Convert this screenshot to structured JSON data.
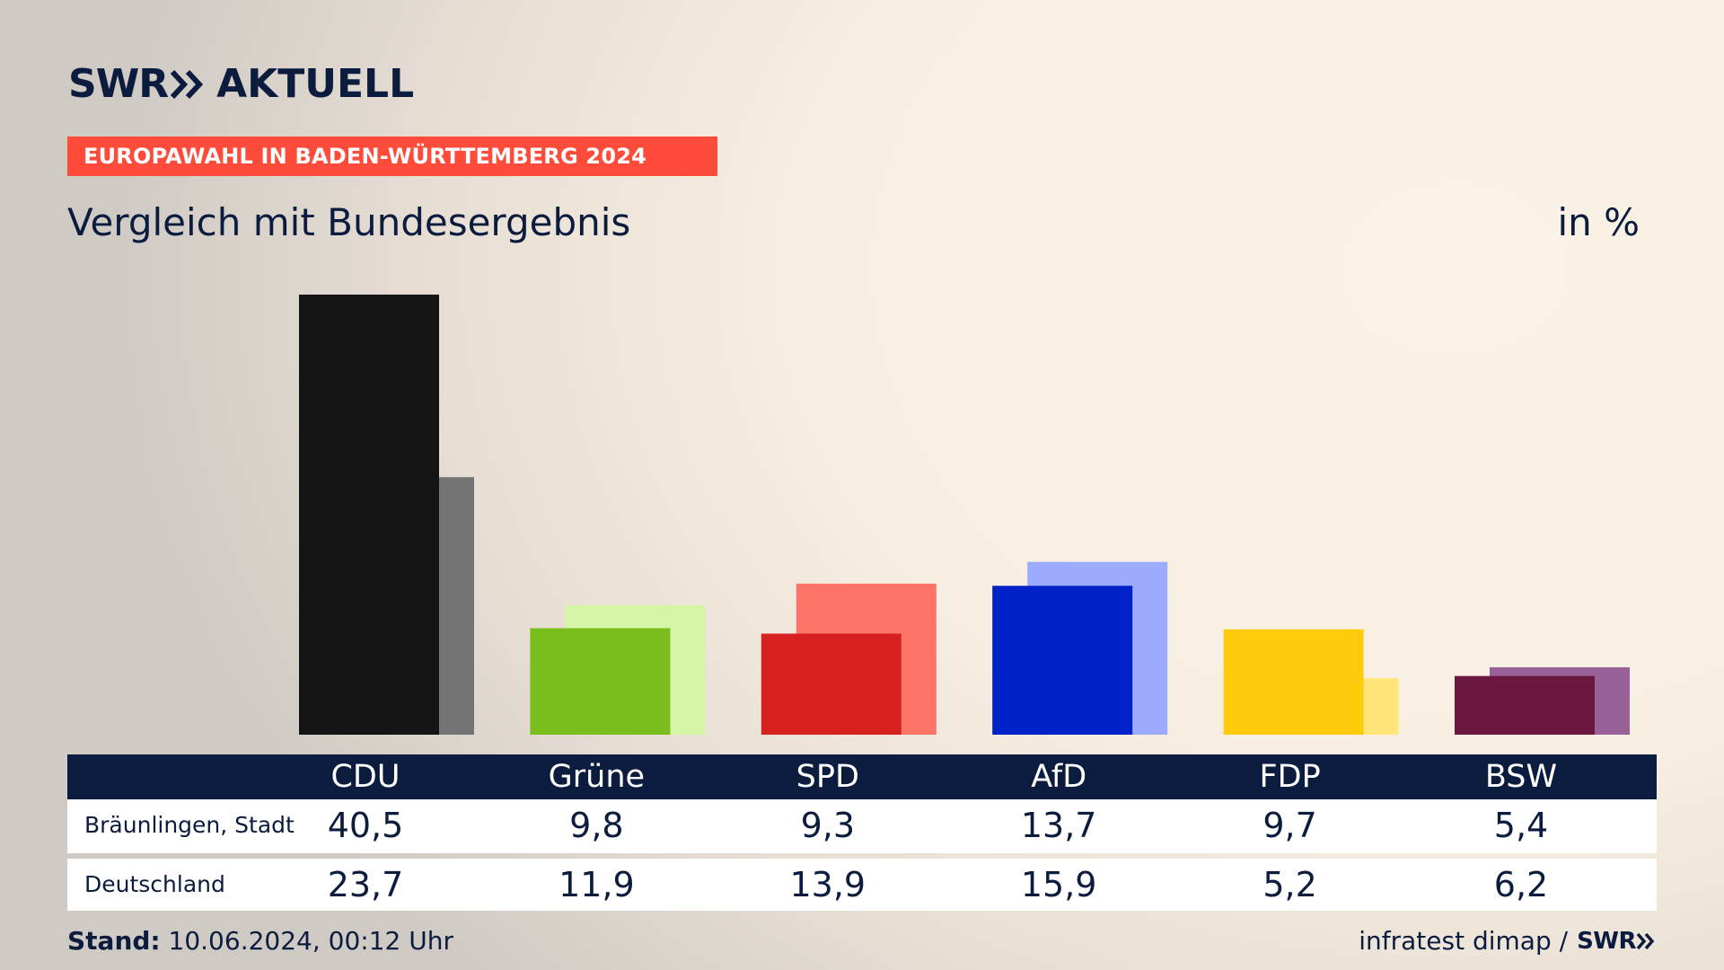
{
  "header": {
    "logo_swr": "SWR",
    "logo_aktuell": "AKTUELL",
    "banner": "EUROPAWAHL IN BADEN-WÜRTTEMBERG 2024",
    "subtitle": "Vergleich mit Bundesergebnis",
    "unit": "in %"
  },
  "chart_data": {
    "type": "bar",
    "title": "Vergleich mit Bundesergebnis",
    "ylabel": "in %",
    "ylim": [
      0,
      40.5
    ],
    "categories": [
      "CDU",
      "Grüne",
      "SPD",
      "AfD",
      "FDP",
      "BSW"
    ],
    "series": [
      {
        "name": "Bräunlingen, Stadt",
        "values": [
          40.5,
          9.8,
          9.3,
          13.7,
          9.7,
          5.4
        ],
        "labels": [
          "40,5",
          "9,8",
          "9,3",
          "13,7",
          "9,7",
          "5,4"
        ],
        "colors": [
          "#141414",
          "#7abe1e",
          "#d72121",
          "#0020c8",
          "#ffcc0d",
          "#6b1841"
        ]
      },
      {
        "name": "Deutschland",
        "values": [
          23.7,
          11.9,
          13.9,
          15.9,
          5.2,
          6.2
        ],
        "labels": [
          "23,7",
          "11,9",
          "13,9",
          "15,9",
          "5,2",
          "6,2"
        ],
        "colors": [
          "#747474",
          "#d6f5a6",
          "#ff7468",
          "#9dabff",
          "#ffe57a",
          "#9a6199"
        ]
      }
    ]
  },
  "footer": {
    "stand_label": "Stand:",
    "stand_value": "10.06.2024, 00:12 Uhr",
    "source": "infratest dimap /",
    "source_logo": "SWR"
  }
}
